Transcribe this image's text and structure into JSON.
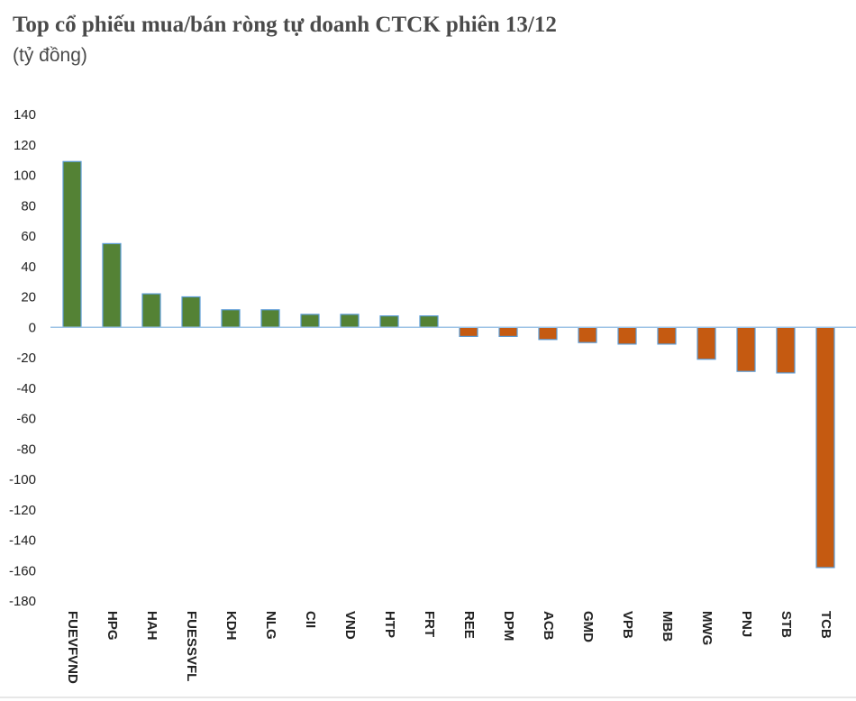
{
  "chart_data": {
    "type": "bar",
    "title": "Top cổ phiếu mua/bán ròng tự doanh CTCK phiên 13/12",
    "subtitle": "(tỷ đồng)",
    "categories": [
      "FUEVFVND",
      "HPG",
      "HAH",
      "FUESSVFL",
      "KDH",
      "NLG",
      "CII",
      "VND",
      "HTP",
      "FRT",
      "REE",
      "DPM",
      "ACB",
      "GMD",
      "VPB",
      "MBB",
      "MWG",
      "PNJ",
      "STB",
      "TCB"
    ],
    "values": [
      109,
      55,
      22,
      20,
      11.5,
      11.5,
      8.5,
      8.5,
      7.5,
      7.5,
      -6,
      -6,
      -8,
      -10,
      -11,
      -11,
      -21,
      -29,
      -30,
      -158
    ],
    "ylim": [
      -180,
      140
    ],
    "yticks": [
      140,
      120,
      100,
      80,
      60,
      40,
      20,
      0,
      -20,
      -40,
      -60,
      -80,
      -100,
      -120,
      -140,
      -160,
      -180
    ],
    "xlabel": "",
    "ylabel": "",
    "grid": false,
    "colors": {
      "positive_fill": "#548235",
      "negative_fill": "#c55a11",
      "bar_outline": "#5b9bd5",
      "axis": "#9dc3e6"
    }
  }
}
